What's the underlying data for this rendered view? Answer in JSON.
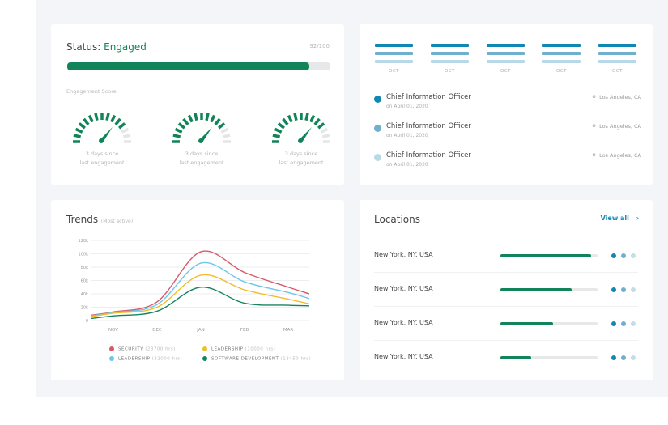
{
  "status": {
    "label": "Status:",
    "value": "Engaged",
    "score": "92/100",
    "progress_percent": 92,
    "section_label": "Engagement Score",
    "gauges": [
      {
        "line1": "3 days since",
        "line2": "last engagement",
        "level_ticks": 12,
        "total_ticks": 15
      },
      {
        "line1": "3 days since",
        "line2": "last engagement",
        "level_ticks": 12,
        "total_ticks": 15
      },
      {
        "line1": "3 days since",
        "line2": "last engagement",
        "level_ticks": 12,
        "total_ticks": 15
      }
    ]
  },
  "timeline": {
    "months": [
      "OCT",
      "OCT",
      "OCT",
      "OCT",
      "OCT"
    ],
    "bar_colors": [
      "#1187b5",
      "#6fb0cf",
      "#b9d9e8"
    ],
    "items": [
      {
        "title": "Chief Information Officer",
        "date": "on April 01, 2020",
        "location": "Los Angeles, CA",
        "color": "#1187b5"
      },
      {
        "title": "Chief Information Officer",
        "date": "on April 01, 2020",
        "location": "Los Angeles, CA",
        "color": "#6fb0cf"
      },
      {
        "title": "Chief Information Officer",
        "date": "on April 01, 2020",
        "location": "Los Angeles, CA",
        "color": "#b9d9e8"
      }
    ]
  },
  "trends": {
    "title": "Trends",
    "subtitle": "(Most active)"
  },
  "chart_data": {
    "type": "line",
    "categories": [
      "NOV",
      "DEC",
      "JAN",
      "FEB",
      "MAR"
    ],
    "yticks": [
      "0",
      "20k",
      "40k",
      "60k",
      "80k",
      "100k",
      "120k"
    ],
    "ylim": [
      0,
      120000
    ],
    "grid": true,
    "legend_placement": "bottom",
    "series": [
      {
        "name": "SECURITY",
        "hrs": "(23700 hrs)",
        "color": "#d65a6a",
        "start": 8000,
        "values": [
          13000,
          28000,
          103000,
          72000,
          50000
        ],
        "end": 40000
      },
      {
        "name": "LEADERSHIP",
        "hrs": "(10000 hrs)",
        "color": "#f1bd2b",
        "start": 6000,
        "values": [
          11000,
          20000,
          68000,
          46000,
          32000
        ],
        "end": 25000
      },
      {
        "name": "LEADERSHIP",
        "hrs": "(32000 hrs)",
        "color": "#6cc6ea",
        "start": 7000,
        "values": [
          12000,
          24000,
          86000,
          58000,
          42000
        ],
        "end": 33000
      },
      {
        "name": "SOFTWARE DEVELOPMENT",
        "hrs": "(13450 hrs)",
        "color": "#14855a",
        "start": 3000,
        "values": [
          7000,
          14000,
          50000,
          26000,
          23000
        ],
        "end": 22000
      }
    ]
  },
  "locations": {
    "title": "Locations",
    "view_all": "View all",
    "dot_colors": [
      "#1187b5",
      "#6fb0cf",
      "#c3dde9"
    ],
    "items": [
      {
        "name": "New York, NY. USA",
        "percent": 93
      },
      {
        "name": "New York, NY. USA",
        "percent": 73
      },
      {
        "name": "New York, NY. USA",
        "percent": 54
      },
      {
        "name": "New York, NY. USA",
        "percent": 32
      }
    ]
  }
}
